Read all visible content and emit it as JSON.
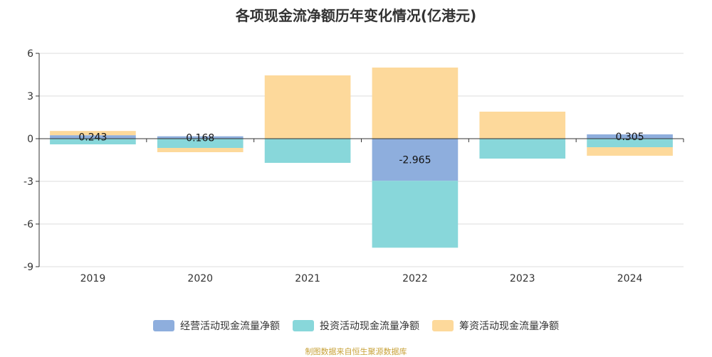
{
  "title": "各项现金流净额历年变化情况(亿港元)",
  "source_note": "制图数据来自恒生聚源数据库",
  "colors": {
    "operating": "#8eaedd",
    "investing": "#88d7da",
    "financing": "#fdd99b"
  },
  "chart_data": {
    "type": "bar",
    "stacked": true,
    "title": "各项现金流净额历年变化情况(亿港元)",
    "categories": [
      "2019",
      "2020",
      "2021",
      "2022",
      "2023",
      "2024"
    ],
    "series": [
      {
        "name": "经营活动现金流量净额",
        "values": [
          0.243,
          0.168,
          0,
          -2.965,
          -0.0,
          0.305
        ],
        "labels": [
          "0.243",
          "0.168",
          "",
          "-2.965",
          "",
          "0.305"
        ]
      },
      {
        "name": "投资活动现金流量净额",
        "values": [
          -0.4,
          -0.65,
          -1.7,
          -4.7,
          -1.4,
          -0.6
        ],
        "labels": [
          "",
          "",
          "",
          "",
          "",
          ""
        ]
      },
      {
        "name": "筹资活动现金流量净额",
        "values": [
          0.3,
          -0.3,
          4.45,
          5.0,
          1.9,
          -0.6
        ],
        "labels": [
          "",
          "",
          "",
          "",
          "",
          ""
        ]
      }
    ],
    "yticks": [
      6,
      3,
      0,
      -3,
      -6,
      -9
    ],
    "ylim": [
      -9,
      6
    ],
    "grid": true,
    "legend": "bottom"
  }
}
